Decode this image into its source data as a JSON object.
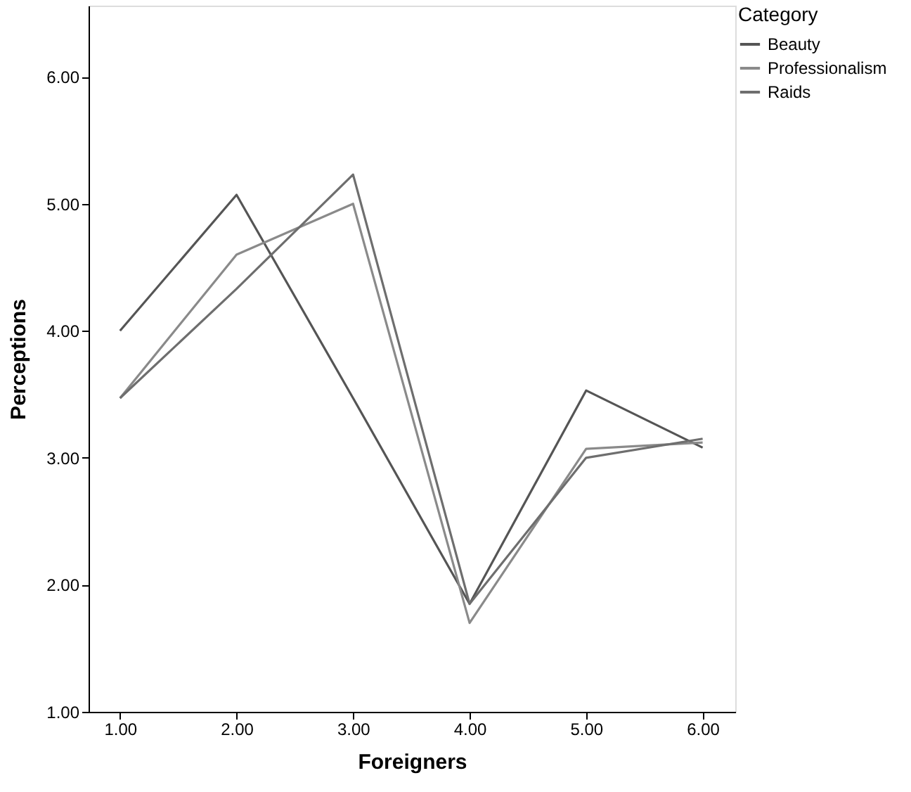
{
  "chart_data": {
    "type": "line",
    "xlabel": "Foreigners",
    "ylabel": "Perceptions",
    "legend_title": "Category",
    "legend": "top right",
    "grid": false,
    "marker": "none",
    "line_style": "solid",
    "x": [
      1,
      2,
      3,
      4,
      5,
      6
    ],
    "xlim": [
      0.73,
      6.28
    ],
    "ylim": [
      1,
      6.56
    ],
    "xticks": [
      {
        "value": 1,
        "label": "1.00"
      },
      {
        "value": 2,
        "label": "2.00"
      },
      {
        "value": 3,
        "label": "3.00"
      },
      {
        "value": 4,
        "label": "4.00"
      },
      {
        "value": 5,
        "label": "5.00"
      },
      {
        "value": 6,
        "label": "6.00"
      }
    ],
    "yticks": [
      {
        "value": 1,
        "label": "1.00"
      },
      {
        "value": 2,
        "label": "2.00"
      },
      {
        "value": 3,
        "label": "3.00"
      },
      {
        "value": 4,
        "label": "4.00"
      },
      {
        "value": 5,
        "label": "5.00"
      },
      {
        "value": 6,
        "label": "6.00"
      }
    ],
    "series": [
      {
        "name": "Beauty",
        "color": "#555555",
        "values": [
          4.0,
          5.07,
          3.47,
          1.85,
          3.53,
          3.08
        ]
      },
      {
        "name": "Professionalism",
        "color": "#8a8a8a",
        "values": [
          3.47,
          4.6,
          5.0,
          1.7,
          3.07,
          3.12
        ]
      },
      {
        "name": "Raids",
        "color": "#6e6e6e",
        "values": [
          3.47,
          4.33,
          5.23,
          1.85,
          3.0,
          3.15
        ]
      }
    ]
  }
}
